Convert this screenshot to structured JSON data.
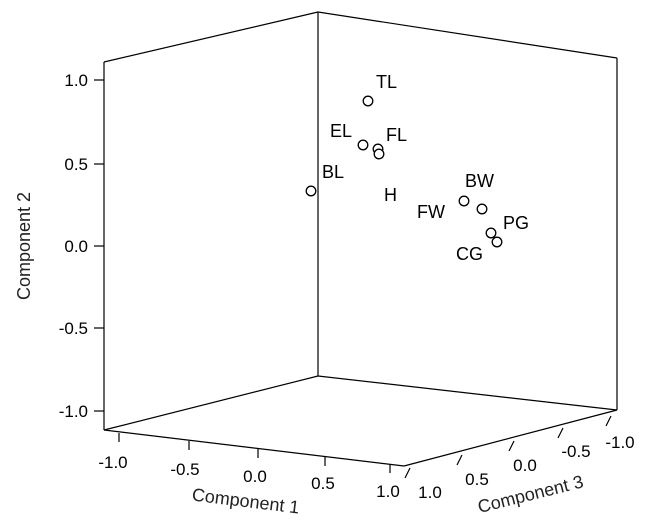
{
  "chart_data": {
    "type": "scatter",
    "projection": "3d",
    "title": "",
    "axes": {
      "x": {
        "label": "Component 1",
        "ticks": [
          "-1.0",
          "-0.5",
          "0.0",
          "0.5",
          "1.0"
        ]
      },
      "y": {
        "label": "Component 2",
        "ticks": [
          "1.0",
          "0.5",
          "0.0",
          "-0.5",
          "-1.0"
        ]
      },
      "z": {
        "label": "Component 3",
        "ticks": [
          "1.0",
          "0.5",
          "0.0",
          "-0.5",
          "-1.0"
        ]
      }
    },
    "points": [
      {
        "label": "TL",
        "y": 0.88
      },
      {
        "label": "EL",
        "y": 0.62
      },
      {
        "label": "FL",
        "y": 0.59
      },
      {
        "label": "H",
        "y": 0.57
      },
      {
        "label": "BL",
        "y": 0.34
      },
      {
        "label": "FW",
        "y": 0.28
      },
      {
        "label": "BW",
        "y": 0.22
      },
      {
        "label": "PG",
        "y": 0.08
      },
      {
        "label": "CG",
        "y": 0.02
      }
    ]
  }
}
